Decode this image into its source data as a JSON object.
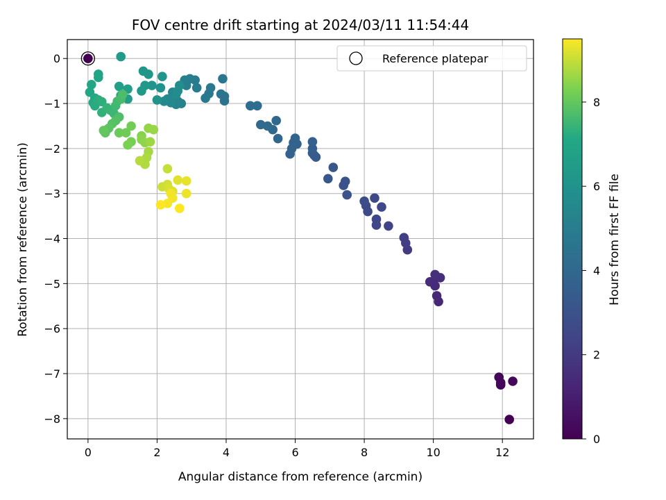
{
  "chart_data": {
    "type": "scatter",
    "title": "FOV centre drift starting at 2024/03/11 11:54:44",
    "xlabel": "Angular distance from reference (arcmin)",
    "ylabel": "Rotation from reference (arcmin)",
    "xlim": [
      -0.6,
      12.9
    ],
    "ylim": [
      -8.45,
      0.42
    ],
    "xticks": [
      0,
      2,
      4,
      6,
      8,
      10,
      12
    ],
    "yticks": [
      0,
      -1,
      -2,
      -3,
      -4,
      -5,
      -6,
      -7,
      -8
    ],
    "xtick_labels": [
      "0",
      "2",
      "4",
      "6",
      "8",
      "10",
      "12"
    ],
    "ytick_labels": [
      "0",
      "−1",
      "−2",
      "−3",
      "−4",
      "−5",
      "−6",
      "−7",
      "−8"
    ],
    "grid": true,
    "legend": {
      "position": "top-right",
      "entries": [
        "Reference platepar"
      ]
    },
    "reference_point": {
      "x": 0,
      "y": 0
    },
    "colorbar": {
      "label": "Hours from first FF file",
      "colormap": "viridis",
      "range": [
        0,
        9.5
      ],
      "ticks": [
        0,
        2,
        4,
        6,
        8
      ],
      "tick_labels": [
        "0",
        "2",
        "4",
        "6",
        "8"
      ]
    },
    "points": [
      {
        "x": 12.2,
        "y": -8.02,
        "h": 0.0
      },
      {
        "x": 11.95,
        "y": -7.25,
        "h": 0.1
      },
      {
        "x": 11.9,
        "y": -7.08,
        "h": 0.15
      },
      {
        "x": 11.95,
        "y": -7.2,
        "h": 0.2
      },
      {
        "x": 12.3,
        "y": -7.17,
        "h": 0.25
      },
      {
        "x": 10.15,
        "y": -5.4,
        "h": 1.3
      },
      {
        "x": 10.1,
        "y": -5.27,
        "h": 1.35
      },
      {
        "x": 10.05,
        "y": -5.05,
        "h": 1.4
      },
      {
        "x": 10.0,
        "y": -4.97,
        "h": 1.45
      },
      {
        "x": 9.9,
        "y": -4.96,
        "h": 1.5
      },
      {
        "x": 10.2,
        "y": -4.87,
        "h": 1.55
      },
      {
        "x": 10.05,
        "y": -4.8,
        "h": 1.6
      },
      {
        "x": 9.25,
        "y": -4.25,
        "h": 2.05
      },
      {
        "x": 9.2,
        "y": -4.1,
        "h": 2.1
      },
      {
        "x": 9.15,
        "y": -3.98,
        "h": 2.15
      },
      {
        "x": 8.7,
        "y": -3.72,
        "h": 2.4
      },
      {
        "x": 8.35,
        "y": -3.7,
        "h": 2.45
      },
      {
        "x": 8.35,
        "y": -3.57,
        "h": 2.5
      },
      {
        "x": 8.5,
        "y": -3.3,
        "h": 2.55
      },
      {
        "x": 8.3,
        "y": -3.1,
        "h": 2.6
      },
      {
        "x": 8.1,
        "y": -3.4,
        "h": 2.65
      },
      {
        "x": 8.05,
        "y": -3.27,
        "h": 2.7
      },
      {
        "x": 8.0,
        "y": -3.17,
        "h": 2.75
      },
      {
        "x": 7.5,
        "y": -3.03,
        "h": 3.0
      },
      {
        "x": 7.4,
        "y": -2.82,
        "h": 3.05
      },
      {
        "x": 7.45,
        "y": -2.73,
        "h": 3.1
      },
      {
        "x": 7.1,
        "y": -2.42,
        "h": 3.2
      },
      {
        "x": 6.95,
        "y": -2.67,
        "h": 3.25
      },
      {
        "x": 6.6,
        "y": -2.19,
        "h": 3.35
      },
      {
        "x": 6.55,
        "y": -2.15,
        "h": 3.4
      },
      {
        "x": 6.5,
        "y": -2.1,
        "h": 3.45
      },
      {
        "x": 6.5,
        "y": -2.0,
        "h": 3.5
      },
      {
        "x": 6.5,
        "y": -1.85,
        "h": 3.55
      },
      {
        "x": 5.85,
        "y": -2.12,
        "h": 3.65
      },
      {
        "x": 5.9,
        "y": -2.0,
        "h": 3.7
      },
      {
        "x": 6.05,
        "y": -1.9,
        "h": 3.75
      },
      {
        "x": 5.95,
        "y": -1.87,
        "h": 3.8
      },
      {
        "x": 6.0,
        "y": -1.77,
        "h": 3.85
      },
      {
        "x": 5.5,
        "y": -1.78,
        "h": 3.95
      },
      {
        "x": 5.35,
        "y": -1.58,
        "h": 4.0
      },
      {
        "x": 5.45,
        "y": -1.38,
        "h": 4.05
      },
      {
        "x": 5.2,
        "y": -1.5,
        "h": 4.1
      },
      {
        "x": 5.0,
        "y": -1.47,
        "h": 4.15
      },
      {
        "x": 4.9,
        "y": -1.05,
        "h": 4.2
      },
      {
        "x": 4.7,
        "y": -1.05,
        "h": 4.25
      },
      {
        "x": 3.95,
        "y": -0.94,
        "h": 4.5
      },
      {
        "x": 3.95,
        "y": -0.84,
        "h": 4.55
      },
      {
        "x": 3.85,
        "y": -0.79,
        "h": 4.6
      },
      {
        "x": 3.9,
        "y": -0.45,
        "h": 4.65
      },
      {
        "x": 3.5,
        "y": -0.78,
        "h": 4.7
      },
      {
        "x": 3.4,
        "y": -0.88,
        "h": 4.75
      },
      {
        "x": 3.55,
        "y": -0.65,
        "h": 4.8
      },
      {
        "x": 3.15,
        "y": -0.65,
        "h": 4.9
      },
      {
        "x": 3.1,
        "y": -0.48,
        "h": 4.95
      },
      {
        "x": 2.95,
        "y": -0.45,
        "h": 5.0
      },
      {
        "x": 2.85,
        "y": -0.6,
        "h": 5.05
      },
      {
        "x": 2.8,
        "y": -0.48,
        "h": 5.1
      },
      {
        "x": 2.7,
        "y": -1.0,
        "h": 5.2
      },
      {
        "x": 2.6,
        "y": -0.95,
        "h": 5.25
      },
      {
        "x": 2.55,
        "y": -1.02,
        "h": 5.3
      },
      {
        "x": 2.5,
        "y": -0.88,
        "h": 5.35
      },
      {
        "x": 2.45,
        "y": -0.75,
        "h": 5.4
      },
      {
        "x": 2.4,
        "y": -0.98,
        "h": 5.45
      },
      {
        "x": 2.35,
        "y": -0.95,
        "h": 5.5
      },
      {
        "x": 2.3,
        "y": -0.9,
        "h": 5.55
      },
      {
        "x": 2.2,
        "y": -0.95,
        "h": 5.6
      },
      {
        "x": 2.55,
        "y": -0.8,
        "h": 5.65
      },
      {
        "x": 2.6,
        "y": -0.72,
        "h": 5.7
      },
      {
        "x": 2.65,
        "y": -0.6,
        "h": 5.75
      },
      {
        "x": 2.1,
        "y": -0.65,
        "h": 6.0
      },
      {
        "x": 2.0,
        "y": -0.92,
        "h": 6.05
      },
      {
        "x": 2.15,
        "y": -0.4,
        "h": 6.1
      },
      {
        "x": 1.85,
        "y": -0.6,
        "h": 6.15
      },
      {
        "x": 1.75,
        "y": -0.35,
        "h": 6.2
      },
      {
        "x": 1.6,
        "y": -0.28,
        "h": 6.25
      },
      {
        "x": 1.65,
        "y": -0.6,
        "h": 6.3
      },
      {
        "x": 1.55,
        "y": -0.72,
        "h": 6.35
      },
      {
        "x": 0.95,
        "y": 0.04,
        "h": 6.4
      },
      {
        "x": 1.15,
        "y": -0.9,
        "h": 6.6
      },
      {
        "x": 1.15,
        "y": -0.68,
        "h": 6.65
      },
      {
        "x": 0.9,
        "y": -0.62,
        "h": 6.7
      },
      {
        "x": 0.95,
        "y": -0.82,
        "h": 6.75
      },
      {
        "x": 0.3,
        "y": -0.35,
        "h": 6.9
      },
      {
        "x": 0.3,
        "y": -0.42,
        "h": 6.95
      },
      {
        "x": 0.1,
        "y": -0.58,
        "h": 7.0
      },
      {
        "x": 0.05,
        "y": -0.75,
        "h": 7.05
      },
      {
        "x": 0.2,
        "y": -0.88,
        "h": 7.1
      },
      {
        "x": 0.15,
        "y": -0.98,
        "h": 7.15
      },
      {
        "x": 0.2,
        "y": -1.05,
        "h": 7.2
      },
      {
        "x": 0.3,
        "y": -0.92,
        "h": 7.25
      },
      {
        "x": 0.4,
        "y": -0.96,
        "h": 7.3
      },
      {
        "x": 0.4,
        "y": -1.2,
        "h": 7.35
      },
      {
        "x": 0.55,
        "y": -1.1,
        "h": 7.4
      },
      {
        "x": 0.65,
        "y": -1.15,
        "h": 7.45
      },
      {
        "x": 0.75,
        "y": -1.22,
        "h": 7.5
      },
      {
        "x": 0.8,
        "y": -1.05,
        "h": 7.55
      },
      {
        "x": 0.85,
        "y": -0.95,
        "h": 7.6
      },
      {
        "x": 0.95,
        "y": -0.9,
        "h": 7.65
      },
      {
        "x": 1.0,
        "y": -0.8,
        "h": 7.7
      },
      {
        "x": 0.9,
        "y": -1.3,
        "h": 7.75
      },
      {
        "x": 0.8,
        "y": -1.38,
        "h": 7.8
      },
      {
        "x": 0.7,
        "y": -1.45,
        "h": 7.85
      },
      {
        "x": 0.6,
        "y": -1.55,
        "h": 7.9
      },
      {
        "x": 0.5,
        "y": -1.65,
        "h": 7.95
      },
      {
        "x": 0.45,
        "y": -1.6,
        "h": 8.0
      },
      {
        "x": 0.9,
        "y": -1.65,
        "h": 8.1
      },
      {
        "x": 1.1,
        "y": -1.65,
        "h": 8.15
      },
      {
        "x": 1.25,
        "y": -1.5,
        "h": 8.2
      },
      {
        "x": 1.25,
        "y": -1.85,
        "h": 8.25
      },
      {
        "x": 1.15,
        "y": -1.92,
        "h": 8.3
      },
      {
        "x": 1.55,
        "y": -1.72,
        "h": 8.4
      },
      {
        "x": 1.55,
        "y": -1.8,
        "h": 8.45
      },
      {
        "x": 1.65,
        "y": -1.87,
        "h": 8.5
      },
      {
        "x": 1.75,
        "y": -1.55,
        "h": 8.55
      },
      {
        "x": 1.9,
        "y": -1.58,
        "h": 8.6
      },
      {
        "x": 1.8,
        "y": -1.85,
        "h": 8.65
      },
      {
        "x": 1.75,
        "y": -2.07,
        "h": 8.7
      },
      {
        "x": 1.7,
        "y": -2.2,
        "h": 8.75
      },
      {
        "x": 1.65,
        "y": -2.35,
        "h": 8.8
      },
      {
        "x": 1.5,
        "y": -2.27,
        "h": 8.85
      },
      {
        "x": 2.3,
        "y": -2.45,
        "h": 9.0
      },
      {
        "x": 2.15,
        "y": -2.85,
        "h": 9.05
      },
      {
        "x": 2.3,
        "y": -2.8,
        "h": 9.1
      },
      {
        "x": 2.35,
        "y": -2.9,
        "h": 9.15
      },
      {
        "x": 2.45,
        "y": -2.95,
        "h": 9.2
      },
      {
        "x": 2.6,
        "y": -2.7,
        "h": 9.25
      },
      {
        "x": 2.85,
        "y": -2.72,
        "h": 9.3
      },
      {
        "x": 2.85,
        "y": -3.0,
        "h": 9.35
      },
      {
        "x": 2.45,
        "y": -3.1,
        "h": 9.4
      },
      {
        "x": 2.3,
        "y": -3.22,
        "h": 9.45
      },
      {
        "x": 2.1,
        "y": -3.25,
        "h": 9.5
      },
      {
        "x": 2.65,
        "y": -3.33,
        "h": 9.5
      },
      {
        "x": 2.4,
        "y": -3.0,
        "h": 9.4
      }
    ]
  }
}
